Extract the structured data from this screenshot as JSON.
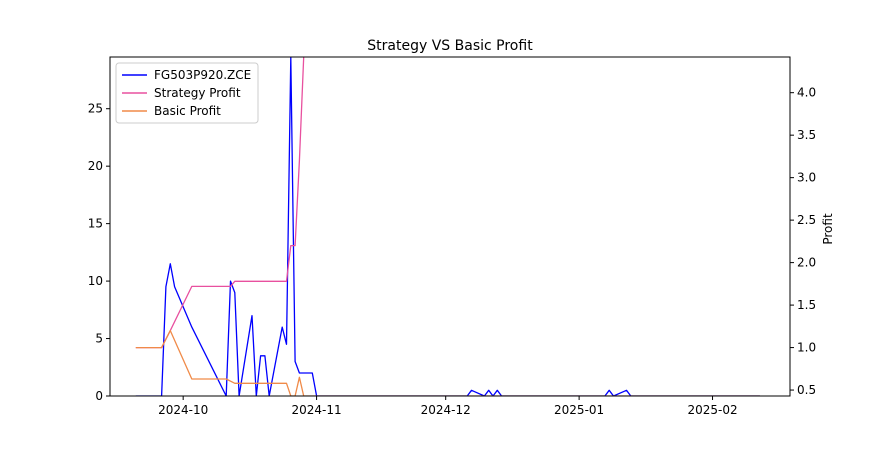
{
  "chart_data": {
    "type": "line",
    "title": "Strategy VS Basic Profit",
    "xlabel": "",
    "ylabel": "",
    "y2label": "Profit",
    "x_ticks": [
      "2024-10",
      "2024-11",
      "2024-12",
      "2025-01",
      "2025-02"
    ],
    "x_range": [
      "2024-09-14",
      "2025-02-19"
    ],
    "y_left": {
      "ticks": [
        0,
        5,
        10,
        15,
        20,
        25
      ],
      "range": [
        0,
        29.5
      ]
    },
    "y_right": {
      "ticks": [
        0.5,
        1.0,
        1.5,
        2.0,
        2.5,
        3.0,
        3.5,
        4.0
      ],
      "tick_labels": [
        "0.5",
        "1.0",
        "1.5",
        "2.0",
        "2.5",
        "3.0",
        "3.5",
        "4.0"
      ],
      "range": [
        0.43,
        4.42
      ]
    },
    "grid": false,
    "legend_position": "upper-left",
    "series": [
      {
        "name": "FG503P920.ZCE",
        "axis": "left",
        "color": "#0000ff",
        "points": [
          [
            "2024-09-20",
            0
          ],
          [
            "2024-09-26",
            0
          ],
          [
            "2024-09-27",
            9.5
          ],
          [
            "2024-09-28",
            11.5
          ],
          [
            "2024-09-29",
            9.5
          ],
          [
            "2024-10-03",
            6.0
          ],
          [
            "2024-10-11",
            0
          ],
          [
            "2024-10-12",
            10.0
          ],
          [
            "2024-10-13",
            9.0
          ],
          [
            "2024-10-14",
            0
          ],
          [
            "2024-10-17",
            7.0
          ],
          [
            "2024-10-18",
            0
          ],
          [
            "2024-10-19",
            3.5
          ],
          [
            "2024-10-20",
            3.5
          ],
          [
            "2024-10-21",
            0
          ],
          [
            "2024-10-24",
            6.0
          ],
          [
            "2024-10-25",
            4.5
          ],
          [
            "2024-10-26",
            29.5
          ],
          [
            "2024-10-27",
            3.0
          ],
          [
            "2024-10-28",
            2.0
          ],
          [
            "2024-10-31",
            2.0
          ],
          [
            "2024-11-01",
            0
          ],
          [
            "2024-12-06",
            0
          ],
          [
            "2024-12-07",
            0.5
          ],
          [
            "2024-12-10",
            0
          ],
          [
            "2024-12-11",
            0.5
          ],
          [
            "2024-12-12",
            0
          ],
          [
            "2024-12-13",
            0.5
          ],
          [
            "2024-12-14",
            0
          ],
          [
            "2025-01-07",
            0
          ],
          [
            "2025-01-08",
            0.5
          ],
          [
            "2025-01-09",
            0
          ],
          [
            "2025-01-12",
            0.5
          ],
          [
            "2025-01-13",
            0
          ],
          [
            "2025-02-12",
            0
          ]
        ]
      },
      {
        "name": "Strategy Profit",
        "axis": "right",
        "color": "#e8509f",
        "points": [
          [
            "2024-09-20",
            1.0
          ],
          [
            "2024-09-26",
            1.0
          ],
          [
            "2024-09-28",
            1.2
          ],
          [
            "2024-10-03",
            1.72
          ],
          [
            "2024-10-12",
            1.72
          ],
          [
            "2024-10-13",
            1.78
          ],
          [
            "2024-10-25",
            1.78
          ],
          [
            "2024-10-26",
            2.2
          ],
          [
            "2024-10-27",
            2.2
          ],
          [
            "2024-10-28",
            3.2
          ],
          [
            "2024-10-29",
            4.42
          ]
        ]
      },
      {
        "name": "Basic Profit",
        "axis": "right",
        "color": "#f08a48",
        "points": [
          [
            "2024-09-20",
            1.0
          ],
          [
            "2024-09-26",
            1.0
          ],
          [
            "2024-09-28",
            1.2
          ],
          [
            "2024-10-03",
            0.63
          ],
          [
            "2024-10-11",
            0.63
          ],
          [
            "2024-10-13",
            0.58
          ],
          [
            "2024-10-25",
            0.58
          ],
          [
            "2024-10-26",
            0.43
          ],
          [
            "2024-10-27",
            0.43
          ],
          [
            "2024-10-28",
            0.65
          ],
          [
            "2024-10-29",
            0.43
          ],
          [
            "2025-02-12",
            0.43
          ]
        ]
      }
    ]
  }
}
